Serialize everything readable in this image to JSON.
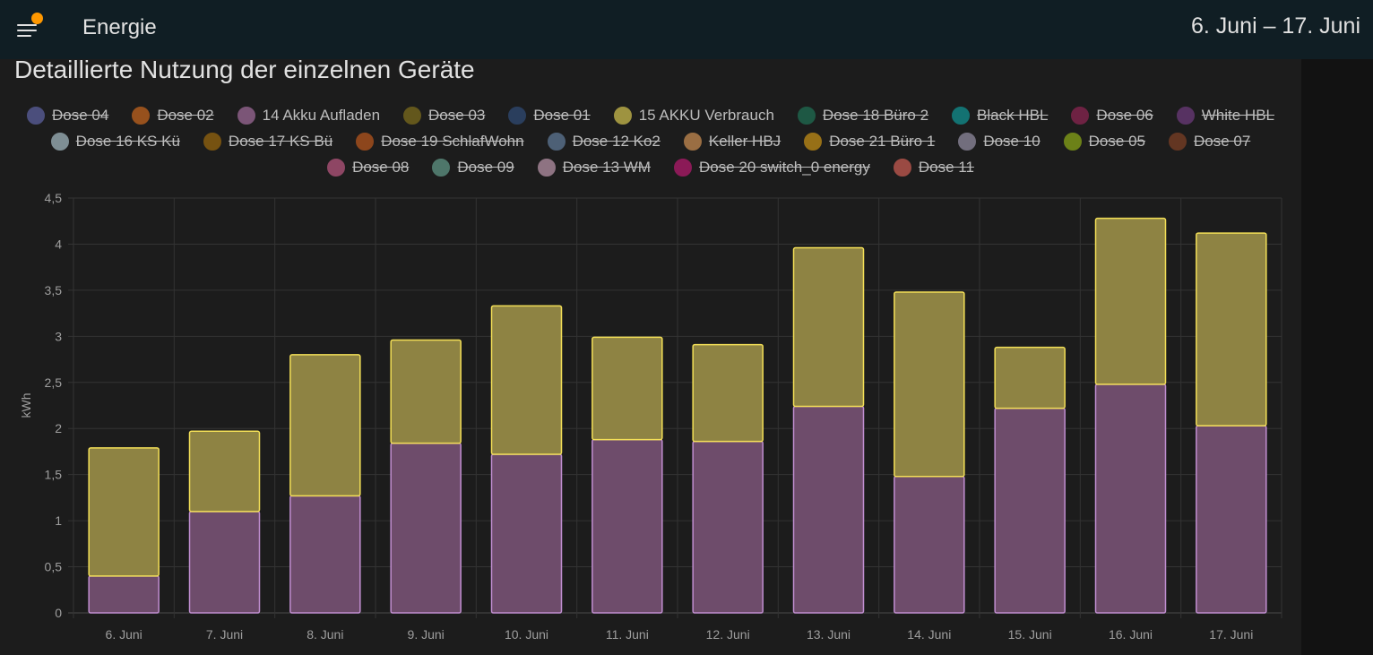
{
  "header": {
    "title": "Energie",
    "date_range": "6. Juni – 17. Juni"
  },
  "card": {
    "title": "Detaillierte Nutzung der einzelnen Geräte"
  },
  "legend": [
    {
      "label": "Dose 04",
      "color": "#5b5f9c",
      "hidden": true
    },
    {
      "label": "Dose 02",
      "color": "#c0631e",
      "hidden": true
    },
    {
      "label": "14 Akku Aufladen",
      "color": "#7b5577",
      "hidden": false
    },
    {
      "label": "Dose 03",
      "color": "#7b6b1c",
      "hidden": true
    },
    {
      "label": "Dose 01",
      "color": "#2f4a73",
      "hidden": true
    },
    {
      "label": "15 AKKU Verbrauch",
      "color": "#9e9340",
      "hidden": false
    },
    {
      "label": "Dose 18 Büro 2",
      "color": "#1f6d52",
      "hidden": true
    },
    {
      "label": "Black HBL",
      "color": "#108f8f",
      "hidden": true
    },
    {
      "label": "Dose 06",
      "color": "#8a2550",
      "hidden": true
    },
    {
      "label": "White HBL",
      "color": "#6b3a7a",
      "hidden": true
    },
    {
      "label": "Dose 16 KS Kü",
      "color": "#9fb5bd",
      "hidden": true
    },
    {
      "label": "Dose 17 KS Bü",
      "color": "#94640e",
      "hidden": true
    },
    {
      "label": "Dose 19 SchlafWohn",
      "color": "#b3541c",
      "hidden": true
    },
    {
      "label": "Dose 12 Ko2",
      "color": "#5e7795",
      "hidden": true
    },
    {
      "label": "Keller HBJ",
      "color": "#c48a50",
      "hidden": true
    },
    {
      "label": "Dose 21 Büro 1",
      "color": "#c18c16",
      "hidden": true
    },
    {
      "label": "Dose 10",
      "color": "#8f8a9e",
      "hidden": true
    },
    {
      "label": "Dose 05",
      "color": "#87a317",
      "hidden": true
    },
    {
      "label": "Dose 07",
      "color": "#7b3f24",
      "hidden": true
    },
    {
      "label": "Dose 08",
      "color": "#b4557d",
      "hidden": true
    },
    {
      "label": "Dose 09",
      "color": "#5f9585",
      "hidden": true
    },
    {
      "label": "Dose 13 WM",
      "color": "#b491a5",
      "hidden": true
    },
    {
      "label": "Dose 20 switch_0 energy",
      "color": "#b01a6b",
      "hidden": true
    },
    {
      "label": "Dose 11",
      "color": "#c45a50",
      "hidden": true
    }
  ],
  "chart_data": {
    "type": "bar",
    "stacked": true,
    "categories": [
      "6. Juni",
      "7. Juni",
      "8. Juni",
      "9. Juni",
      "10. Juni",
      "11. Juni",
      "12. Juni",
      "13. Juni",
      "14. Juni",
      "15. Juni",
      "16. Juni",
      "17. Juni"
    ],
    "ylabel": "kWh",
    "ylim": [
      0,
      4.5
    ],
    "yticks": [
      "0",
      "0,5",
      "1",
      "1,5",
      "2",
      "2,5",
      "3",
      "3,5",
      "4",
      "4,5"
    ],
    "grid": true,
    "series": [
      {
        "name": "14 Akku Aufladen",
        "fill": "#6e4c6b",
        "stroke": "#c08ed0",
        "values": [
          0.4,
          1.1,
          1.27,
          1.84,
          1.72,
          1.88,
          1.86,
          2.24,
          1.48,
          2.22,
          2.48,
          2.03
        ]
      },
      {
        "name": "15 AKKU Verbrauch",
        "fill": "#8e8343",
        "stroke": "#f3df57",
        "values": [
          1.39,
          0.87,
          1.53,
          1.12,
          1.61,
          1.11,
          1.05,
          1.72,
          2.0,
          0.66,
          1.8,
          2.09
        ]
      }
    ]
  }
}
